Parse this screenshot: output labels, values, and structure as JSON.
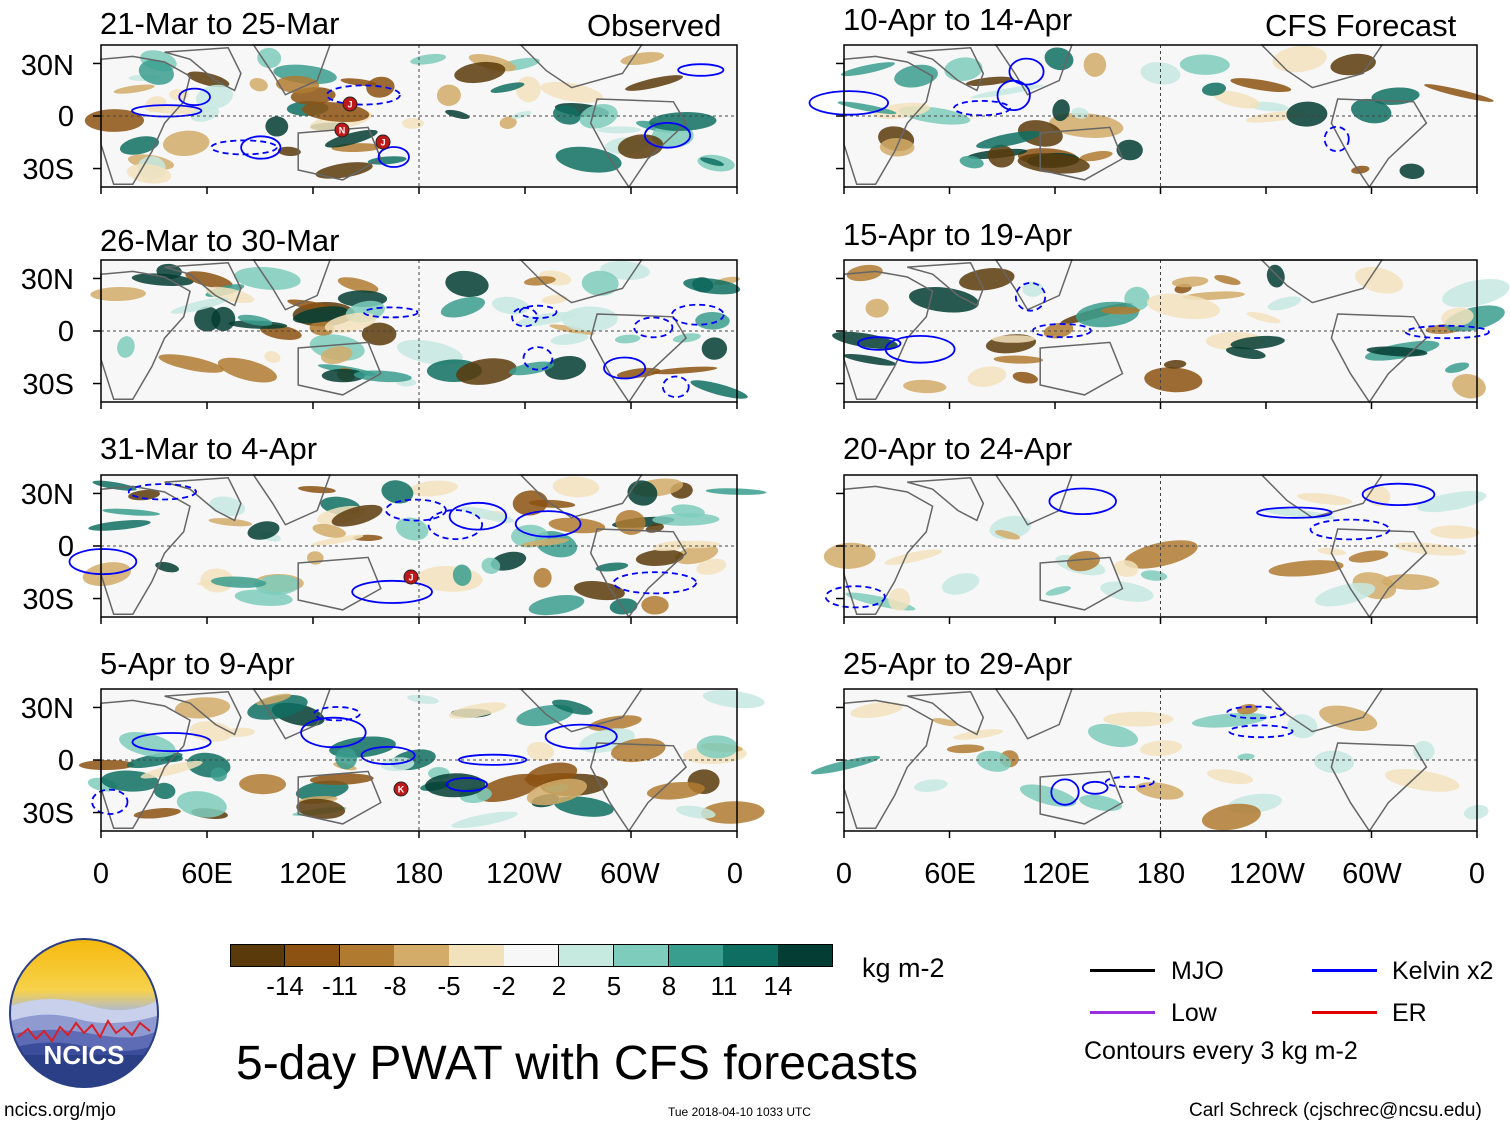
{
  "columns": {
    "left_header": "Observed",
    "right_header": "CFS Forecast"
  },
  "panels": [
    {
      "title": "21-Mar to 25-Mar",
      "column": "observed",
      "row": 0
    },
    {
      "title": "26-Mar to 30-Mar",
      "column": "observed",
      "row": 1
    },
    {
      "title": "31-Mar to 4-Apr",
      "column": "observed",
      "row": 2
    },
    {
      "title": "5-Apr to 9-Apr",
      "column": "observed",
      "row": 3
    },
    {
      "title": "10-Apr to 14-Apr",
      "column": "forecast",
      "row": 0
    },
    {
      "title": "15-Apr to 19-Apr",
      "column": "forecast",
      "row": 1
    },
    {
      "title": "20-Apr to 24-Apr",
      "column": "forecast",
      "row": 2
    },
    {
      "title": "25-Apr to 29-Apr",
      "column": "forecast",
      "row": 3
    }
  ],
  "lat_labels": [
    "30N",
    "0",
    "30S"
  ],
  "lon_labels": [
    "0",
    "60E",
    "120E",
    "180",
    "120W",
    "60W",
    "0"
  ],
  "colorbar": {
    "colors": [
      "#5a3a0a",
      "#8c5212",
      "#b07a30",
      "#d2ac68",
      "#f2e2bc",
      "#f7f7f7",
      "#c6e9e0",
      "#7ecdbc",
      "#3a9e8e",
      "#0f6e62",
      "#033d33"
    ],
    "labels": [
      "-14",
      "-11",
      "-8",
      "-5",
      "-2",
      "2",
      "5",
      "8",
      "11",
      "14"
    ],
    "units": "kg m-2"
  },
  "legend": {
    "items": [
      {
        "label": "MJO",
        "color": "#000000"
      },
      {
        "label": "Kelvin x2",
        "color": "#0000ff"
      },
      {
        "label": "Low",
        "color": "#9a2fdc"
      },
      {
        "label": "ER",
        "color": "#e00000"
      }
    ],
    "note": "Contours every 3 kg m-2"
  },
  "storm_markers": [
    {
      "letter": "J",
      "panel": 0
    },
    {
      "letter": "N",
      "panel": 0
    },
    {
      "letter": "J",
      "panel": 0
    },
    {
      "letter": "J",
      "panel": 2
    },
    {
      "letter": "K",
      "panel": 3
    }
  ],
  "logo": {
    "text": "NCICS"
  },
  "title": "5-day PWAT with CFS forecasts",
  "footer": {
    "url": "ncics.org/mjo",
    "timestamp": "Tue 2018-04-10 1033 UTC",
    "credit": "Carl Schreck (cjschrec@ncsu.edu)"
  }
}
